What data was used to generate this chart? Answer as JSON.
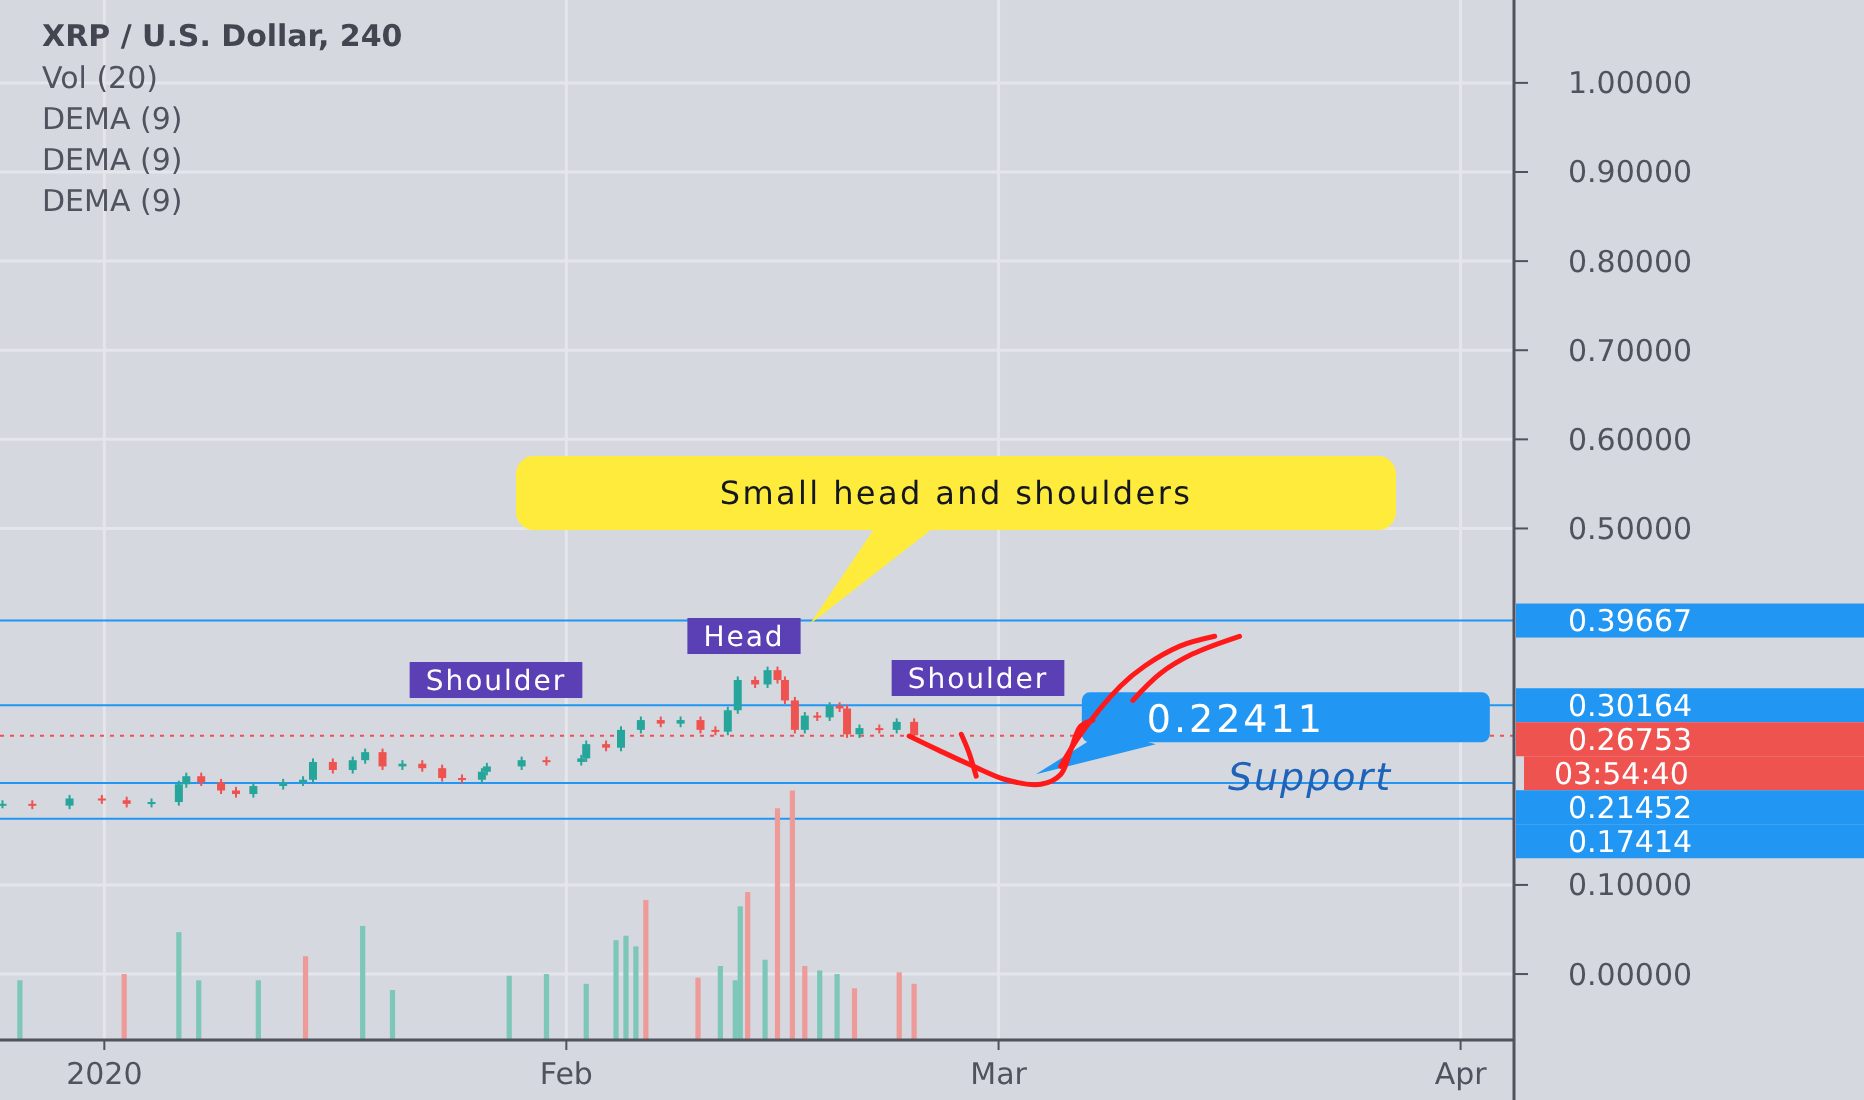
{
  "chart_data": {
    "type": "candlestick",
    "title": "XRP / U.S. Dollar, 240",
    "x": [
      "2019-12-25T04:00",
      "2019-12-27T04:00",
      "2019-12-29T16:00",
      "2019-12-31T20:00",
      "2020-01-02T12:00",
      "2020-01-04T04:00",
      "2020-01-06T00:00",
      "2020-01-06T12:00",
      "2020-01-07T12:00",
      "2020-01-08T20:00",
      "2020-01-09T20:00",
      "2020-01-11T00:00",
      "2020-01-13T00:00",
      "2020-01-14T08:00",
      "2020-01-15T00:00",
      "2020-01-16T08:00",
      "2020-01-17T16:00",
      "2020-01-18T12:00",
      "2020-01-19T16:00",
      "2020-01-21T00:00",
      "2020-01-22T08:00",
      "2020-01-23T16:00",
      "2020-01-25T00:00",
      "2020-01-26T08:00",
      "2020-01-26T16:00",
      "2020-01-29T00:00",
      "2020-01-30T16:00",
      "2020-02-02T00:00",
      "2020-02-02T08:00",
      "2020-02-03T16:00",
      "2020-02-04T16:00",
      "2020-02-06T00:00",
      "2020-02-07T08:00",
      "2020-02-08T16:00",
      "2020-02-10T00:00",
      "2020-02-11T00:00",
      "2020-02-11T20:00",
      "2020-02-12T12:00",
      "2020-02-13T16:00",
      "2020-02-14T12:00",
      "2020-02-15T04:00",
      "2020-02-15T16:00",
      "2020-02-16T08:00",
      "2020-02-17T00:00",
      "2020-02-17T20:00",
      "2020-02-18T16:00",
      "2020-02-19T08:00",
      "2020-02-19T20:00",
      "2020-02-20T16:00",
      "2020-02-22T00:00",
      "2020-02-23T04:00",
      "2020-02-24T08:00"
    ],
    "ohlc": [
      [
        0.19,
        0.195,
        0.186,
        0.191
      ],
      [
        0.191,
        0.195,
        0.185,
        0.189
      ],
      [
        0.189,
        0.201,
        0.185,
        0.197
      ],
      [
        0.197,
        0.201,
        0.191,
        0.195
      ],
      [
        0.195,
        0.199,
        0.187,
        0.191
      ],
      [
        0.191,
        0.197,
        0.187,
        0.193
      ],
      [
        0.193,
        0.217,
        0.189,
        0.213
      ],
      [
        0.213,
        0.226,
        0.209,
        0.222
      ],
      [
        0.222,
        0.226,
        0.211,
        0.215
      ],
      [
        0.215,
        0.219,
        0.202,
        0.206
      ],
      [
        0.206,
        0.21,
        0.198,
        0.202
      ],
      [
        0.202,
        0.215,
        0.198,
        0.211
      ],
      [
        0.211,
        0.219,
        0.207,
        0.215
      ],
      [
        0.215,
        0.222,
        0.211,
        0.218
      ],
      [
        0.218,
        0.242,
        0.214,
        0.238
      ],
      [
        0.238,
        0.242,
        0.225,
        0.229
      ],
      [
        0.229,
        0.244,
        0.225,
        0.24
      ],
      [
        0.24,
        0.253,
        0.236,
        0.249
      ],
      [
        0.249,
        0.253,
        0.229,
        0.233
      ],
      [
        0.233,
        0.24,
        0.229,
        0.236
      ],
      [
        0.236,
        0.24,
        0.227,
        0.231
      ],
      [
        0.231,
        0.235,
        0.216,
        0.22
      ],
      [
        0.22,
        0.224,
        0.214,
        0.218
      ],
      [
        0.218,
        0.231,
        0.214,
        0.227
      ],
      [
        0.227,
        0.237,
        0.223,
        0.233
      ],
      [
        0.233,
        0.244,
        0.229,
        0.24
      ],
      [
        0.24,
        0.244,
        0.234,
        0.238
      ],
      [
        0.238,
        0.246,
        0.234,
        0.242
      ],
      [
        0.242,
        0.262,
        0.238,
        0.258
      ],
      [
        0.258,
        0.262,
        0.25,
        0.254
      ],
      [
        0.254,
        0.278,
        0.25,
        0.274
      ],
      [
        0.274,
        0.289,
        0.27,
        0.285
      ],
      [
        0.285,
        0.289,
        0.277,
        0.281
      ],
      [
        0.281,
        0.289,
        0.277,
        0.285
      ],
      [
        0.285,
        0.289,
        0.27,
        0.274
      ],
      [
        0.274,
        0.278,
        0.268,
        0.272
      ],
      [
        0.272,
        0.3,
        0.268,
        0.296
      ],
      [
        0.296,
        0.334,
        0.292,
        0.33
      ],
      [
        0.33,
        0.334,
        0.321,
        0.325
      ],
      [
        0.325,
        0.345,
        0.321,
        0.341
      ],
      [
        0.341,
        0.345,
        0.326,
        0.33
      ],
      [
        0.33,
        0.334,
        0.303,
        0.307
      ],
      [
        0.307,
        0.311,
        0.27,
        0.274
      ],
      [
        0.274,
        0.294,
        0.27,
        0.29
      ],
      [
        0.29,
        0.294,
        0.284,
        0.288
      ],
      [
        0.288,
        0.305,
        0.284,
        0.301
      ],
      [
        0.301,
        0.305,
        0.294,
        0.298
      ],
      [
        0.298,
        0.302,
        0.265,
        0.269
      ],
      [
        0.269,
        0.28,
        0.265,
        0.276
      ],
      [
        0.276,
        0.28,
        0.27,
        0.274
      ],
      [
        0.274,
        0.287,
        0.27,
        0.283
      ],
      [
        0.283,
        0.287,
        0.264,
        0.268
      ]
    ],
    "colors": [
      "#26a69a",
      "#ef5350",
      "#26a69a",
      "#ef5350",
      "#ef5350",
      "#26a69a",
      "#26a69a",
      "#26a69a",
      "#ef5350",
      "#ef5350",
      "#ef5350",
      "#26a69a",
      "#26a69a",
      "#26a69a",
      "#26a69a",
      "#ef5350",
      "#26a69a",
      "#26a69a",
      "#ef5350",
      "#26a69a",
      "#ef5350",
      "#ef5350",
      "#ef5350",
      "#26a69a",
      "#26a69a",
      "#26a69a",
      "#ef5350",
      "#26a69a",
      "#26a69a",
      "#ef5350",
      "#26a69a",
      "#26a69a",
      "#ef5350",
      "#26a69a",
      "#ef5350",
      "#ef5350",
      "#26a69a",
      "#26a69a",
      "#ef5350",
      "#26a69a",
      "#ef5350",
      "#ef5350",
      "#ef5350",
      "#26a69a",
      "#ef5350",
      "#26a69a",
      "#ef5350",
      "#ef5350",
      "#26a69a",
      "#ef5350",
      "#26a69a",
      "#ef5350"
    ],
    "series": [
      {
        "type": "bar",
        "x": [
          "2019-12-26T08:00",
          "2020-01-02T08:00",
          "2020-01-06T00:00",
          "2020-01-07T08:00",
          "2020-01-11T08:00",
          "2020-01-14T12:00",
          "2020-01-18T08:00",
          "2020-01-20T08:00",
          "2020-01-28T04:00",
          "2020-01-30T16:00",
          "2020-02-02T08:00",
          "2020-02-04T08:00",
          "2020-02-05T00:00",
          "2020-02-05T16:00",
          "2020-02-06T08:00",
          "2020-02-09T20:00",
          "2020-02-11T08:00",
          "2020-02-12T08:00",
          "2020-02-12T16:00",
          "2020-02-13T04:00",
          "2020-02-14T08:00",
          "2020-02-15T04:00",
          "2020-02-16T04:00",
          "2020-02-17T00:00",
          "2020-02-18T00:00",
          "2020-02-19T04:00",
          "2020-02-20T08:00",
          "2020-02-23T08:00",
          "2020-02-24T08:00"
        ],
        "values": [
          0.067,
          0.074,
          0.121,
          0.067,
          0.067,
          0.094,
          0.128,
          0.056,
          0.072,
          0.074,
          0.063,
          0.112,
          0.117,
          0.105,
          0.157,
          0.07,
          0.083,
          0.067,
          0.15,
          0.166,
          0.09,
          0.26,
          0.28,
          0.083,
          0.078,
          0.074,
          0.058,
          0.076,
          0.063
        ],
        "base": [
          -0.074,
          -0.074,
          -0.074,
          -0.074,
          -0.074,
          -0.074,
          -0.074,
          -0.074,
          -0.074,
          -0.074,
          -0.074,
          -0.074,
          -0.074,
          -0.074,
          -0.074,
          -0.074,
          -0.074,
          -0.074,
          -0.074,
          -0.074,
          -0.074,
          -0.074,
          -0.074,
          -0.074,
          -0.074,
          -0.074,
          -0.074,
          -0.074,
          -0.074
        ],
        "colors": [
          "#7cc7b8",
          "#ee9a98",
          "#7cc7b8",
          "#7cc7b8",
          "#7cc7b8",
          "#ee9a98",
          "#7cc7b8",
          "#7cc7b8",
          "#7cc7b8",
          "#7cc7b8",
          "#7cc7b8",
          "#7cc7b8",
          "#7cc7b8",
          "#7cc7b8",
          "#ee9a98",
          "#ee9a98",
          "#7cc7b8",
          "#7cc7b8",
          "#7cc7b8",
          "#ee9a98",
          "#7cc7b8",
          "#ee9a98",
          "#ee9a98",
          "#ee9a98",
          "#7cc7b8",
          "#7cc7b8",
          "#ee9a98",
          "#ee9a98",
          "#ee9a98"
        ]
      },
      {
        "type": "line",
        "color": "#ff1a1a",
        "x": [
          "2020-02-24T00:00",
          "2020-02-26T00:00",
          "2020-02-28T08:00",
          "2020-03-01T12:00",
          "2020-03-03T20:00",
          "2020-03-05T04:00",
          "2020-03-05T20:00",
          "2020-03-06T12:00",
          "2020-03-07T08:00"
        ],
        "values": [
          0.267,
          0.251,
          0.233,
          0.218,
          0.213,
          0.224,
          0.251,
          0.278,
          0.285
        ]
      },
      {
        "type": "line",
        "color": "#ff1a1a",
        "x": [
          "2020-03-05T04:00",
          "2020-03-06T12:00",
          "2020-03-09T04:00",
          "2020-03-10T20:00",
          "2020-03-13T04:00",
          "2020-03-15T12:00"
        ],
        "values": [
          0.233,
          0.269,
          0.323,
          0.346,
          0.368,
          0.379
        ]
      },
      {
        "type": "line",
        "color": "#ff1a1a",
        "x": [
          "2020-03-10T00:00",
          "2020-03-11T20:00",
          "2020-03-14T00:00",
          "2020-03-17T04:00"
        ],
        "values": [
          0.307,
          0.337,
          0.359,
          0.379
        ]
      },
      {
        "type": "line",
        "color": "#ff1a1a",
        "x": [
          "2020-02-27T12:00",
          "2020-02-28T00:00",
          "2020-02-28T12:00"
        ],
        "values": [
          0.269,
          0.249,
          0.222
        ]
      }
    ],
    "xlim": [
      "2019-12-25T00:00",
      "2020-04-04T14:00"
    ],
    "xticks": [
      {
        "value": "2020-01-01",
        "label": "2020"
      },
      {
        "value": "2020-02-01",
        "label": "Feb"
      },
      {
        "value": "2020-03-01",
        "label": "Mar"
      },
      {
        "value": "2020-04-01",
        "label": "Apr"
      }
    ],
    "ylim": [
      -0.074,
      1.093
    ],
    "yticks": [
      {
        "value": 0,
        "label": "0.00000"
      },
      {
        "value": 0.1,
        "label": "0.10000"
      },
      {
        "value": 0.5,
        "label": "0.50000"
      },
      {
        "value": 0.6,
        "label": "0.60000"
      },
      {
        "value": 0.7,
        "label": "0.70000"
      },
      {
        "value": 0.8,
        "label": "0.80000"
      },
      {
        "value": 0.9,
        "label": "0.90000"
      },
      {
        "value": 1,
        "label": "1.00000"
      }
    ],
    "grid": true,
    "ref_lines": [
      {
        "axis": "y",
        "value": 0.39667,
        "label": "0.39667",
        "color": "#2196f3"
      },
      {
        "axis": "y",
        "value": 0.30164,
        "label": "0.30164",
        "color": "#2196f3"
      },
      {
        "axis": "y",
        "value": 0.26753,
        "label": "0.26753",
        "color": "#ef5350",
        "line_style": "dotted"
      },
      {
        "axis": "y",
        "value": 0.21452,
        "label": "0.21452",
        "color": "#2196f3"
      },
      {
        "axis": "y",
        "value": 0.17414,
        "label": "0.17414",
        "color": "#2196f3"
      }
    ],
    "annotations": [
      "Vol (20)",
      "DEMA (9)",
      "DEMA (9)",
      "DEMA (9)",
      "03:54:40",
      "Small head and shoulders",
      "Head",
      "Shoulder",
      "Shoulder",
      {
        "text": "0.22411",
        "x": "2020-03-03T12:00",
        "y": 0.22411
      },
      "Support"
    ]
  }
}
